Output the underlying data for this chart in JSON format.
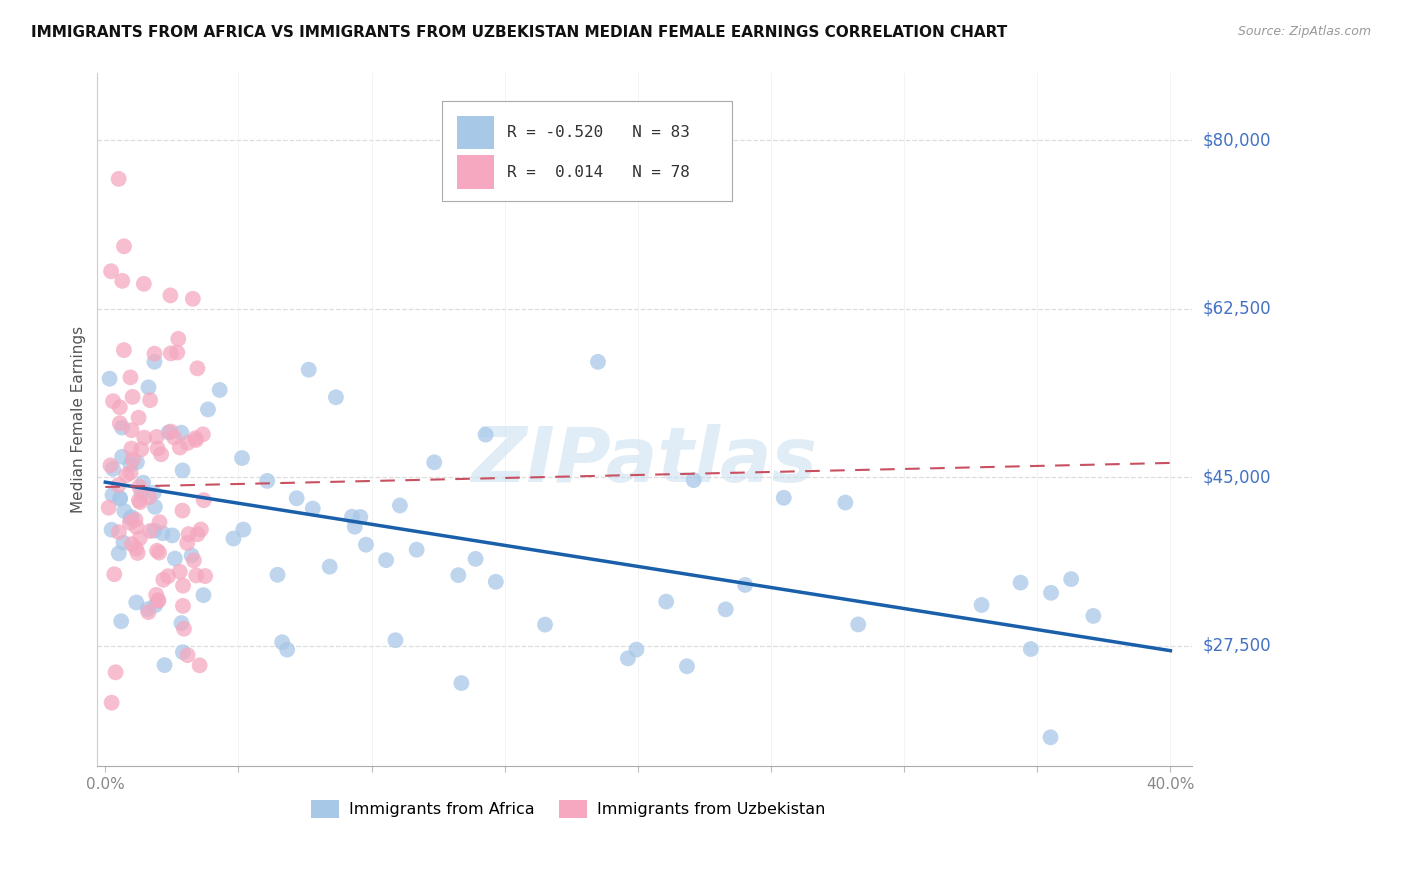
{
  "title": "IMMIGRANTS FROM AFRICA VS IMMIGRANTS FROM UZBEKISTAN MEDIAN FEMALE EARNINGS CORRELATION CHART",
  "source": "Source: ZipAtlas.com",
  "ylabel": "Median Female Earnings",
  "xlim": [
    -0.003,
    0.408
  ],
  "ylim": [
    15000,
    87000
  ],
  "yticks": [
    27500,
    45000,
    62500,
    80000
  ],
  "ytick_labels": [
    "$27,500",
    "$45,000",
    "$62,500",
    "$80,000"
  ],
  "xticks": [
    0.0,
    0.05,
    0.1,
    0.15,
    0.2,
    0.25,
    0.3,
    0.35,
    0.4
  ],
  "xtick_labels": [
    "0.0%",
    "",
    "",
    "",
    "",
    "",
    "",
    "",
    "40.0%"
  ],
  "africa_R": -0.52,
  "africa_N": 83,
  "uzbekistan_R": 0.014,
  "uzbekistan_N": 78,
  "africa_color": "#a8c8e8",
  "uzbekistan_color": "#f5a8c0",
  "africa_line_color": "#1a5faa",
  "uzbekistan_line_color": "#c85060",
  "africa_line_y0": 44500,
  "africa_line_y1": 27000,
  "uzbekistan_line_y0": 44000,
  "uzbekistan_line_y1": 46500,
  "watermark": "ZIPatlas",
  "legend_R_africa": "R = -0.520",
  "legend_N_africa": "N = 83",
  "legend_R_uzbekistan": "R =  0.014",
  "legend_N_uzbekistan": "N = 78"
}
